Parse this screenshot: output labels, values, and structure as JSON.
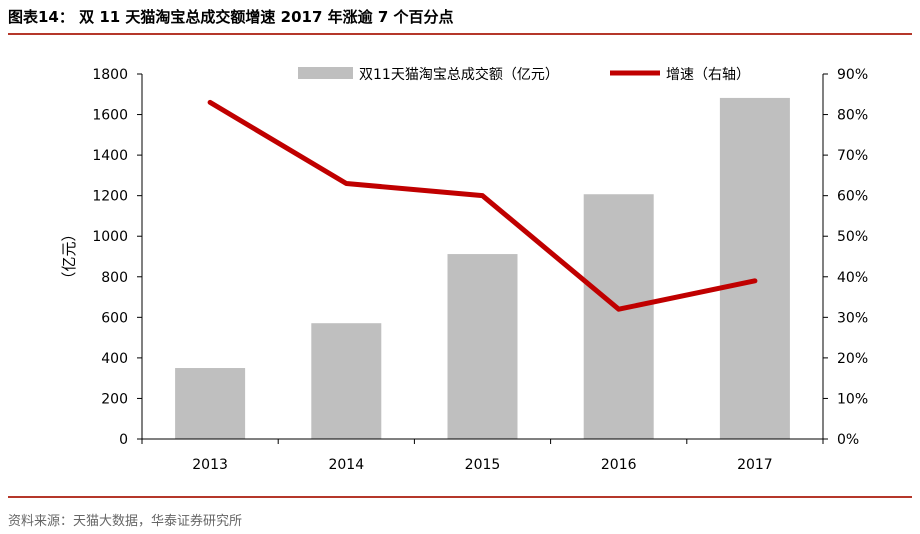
{
  "header": {
    "title": "图表14： 双 11 天猫淘宝总成交额增速 2017 年涨逾 7 个百分点"
  },
  "footer": {
    "source": "资料来源：天猫大数据，华泰证券研究所"
  },
  "colors": {
    "rule": "#b5372a",
    "bar": "#bfbfbf",
    "line": "#c00000",
    "axis": "#000000"
  },
  "chart_data": {
    "type": "bar",
    "categories": [
      "2013",
      "2014",
      "2015",
      "2016",
      "2017"
    ],
    "series": [
      {
        "name": "双11天猫淘宝总成交额（亿元）",
        "type": "bar",
        "axis": "left",
        "values": [
          350,
          571,
          912,
          1207,
          1682
        ]
      },
      {
        "name": "增速（右轴）",
        "type": "line",
        "axis": "right",
        "values": [
          83,
          63,
          60,
          32,
          39
        ]
      }
    ],
    "ylabel": "（亿元）",
    "ylim": [
      0,
      1800
    ],
    "yticks": [
      "0",
      "200",
      "400",
      "600",
      "800",
      "1000",
      "1200",
      "1400",
      "1600",
      "1800"
    ],
    "y2lim": [
      0,
      90
    ],
    "y2ticks": [
      "0%",
      "10%",
      "20%",
      "30%",
      "40%",
      "50%",
      "60%",
      "70%",
      "80%",
      "90%"
    ],
    "legend": "top-right",
    "grid": false
  }
}
